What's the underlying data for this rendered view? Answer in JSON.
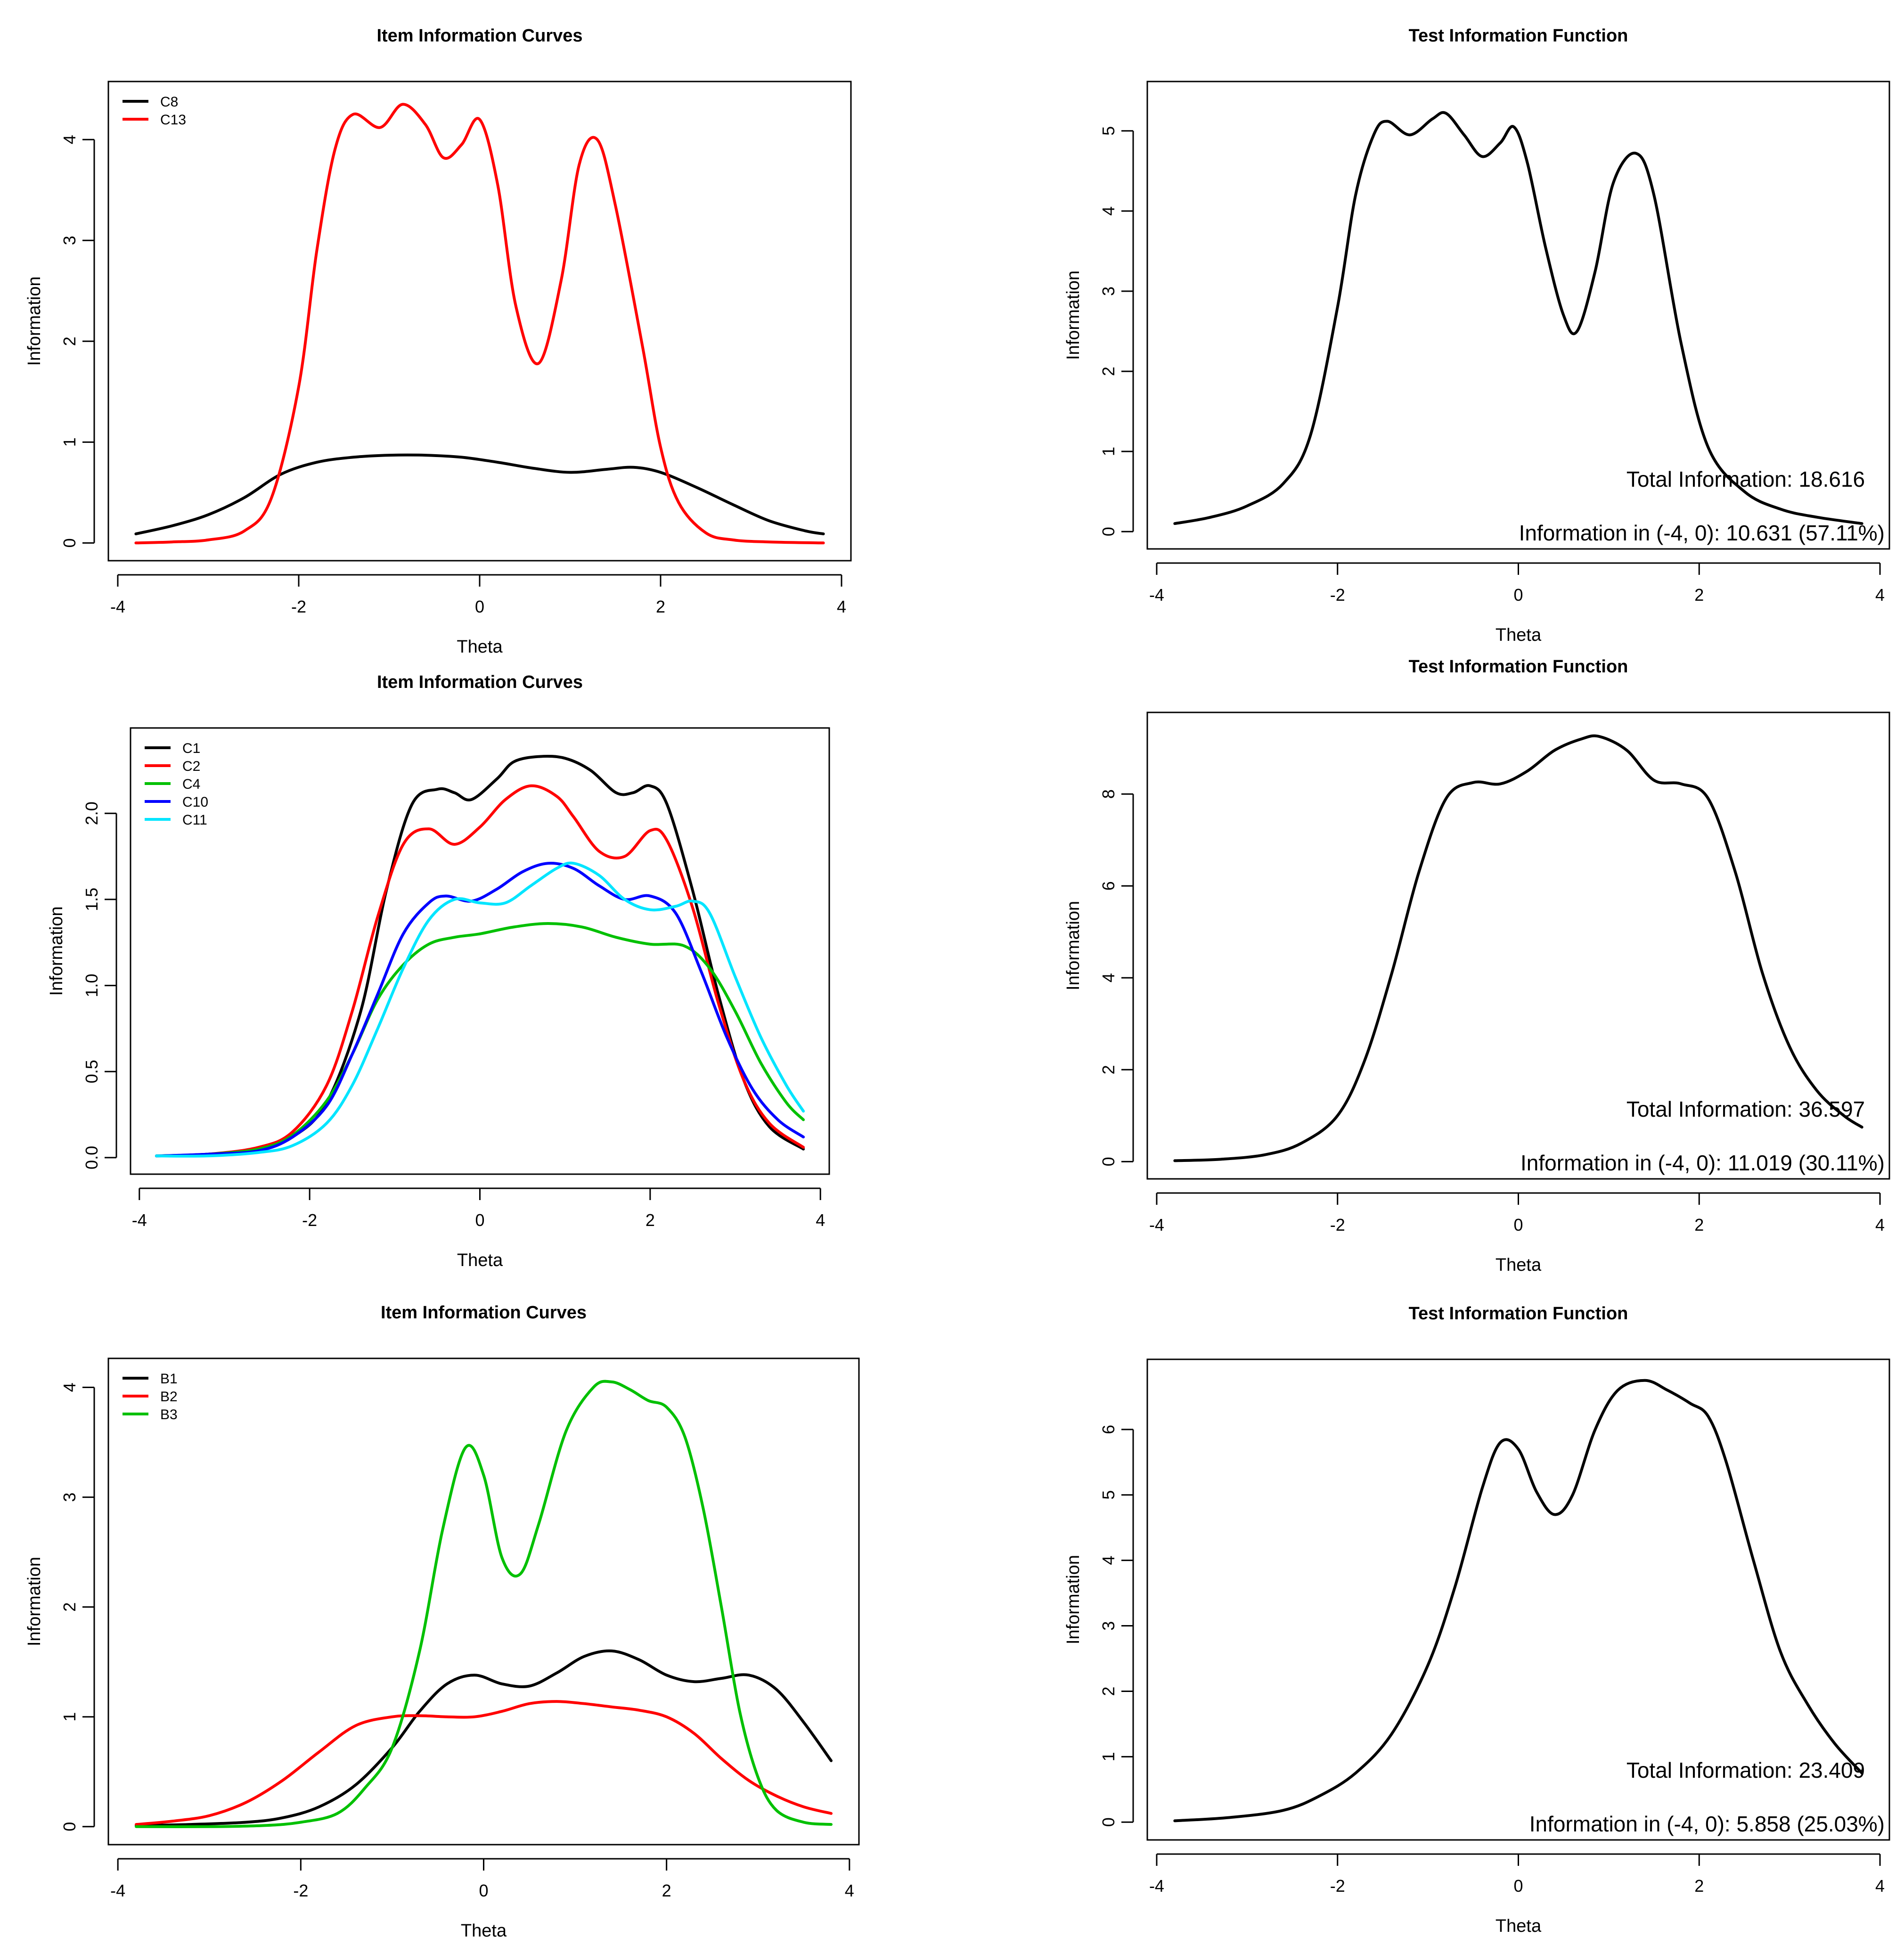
{
  "chart_data": [
    {
      "type": "line",
      "title": "Item Information Curves",
      "xlabel": "Theta",
      "ylabel": "Information",
      "xlim": [
        -3.8,
        3.8
      ],
      "ylim": [
        0,
        4.4
      ],
      "xticks": [
        -4,
        -2,
        0,
        2,
        4
      ],
      "yticks": [
        0,
        1,
        2,
        3,
        4
      ],
      "legend_position": "top-left",
      "series": [
        {
          "name": "C8",
          "color": "#000000",
          "x": [
            -3.8,
            -3.4,
            -3.0,
            -2.6,
            -2.2,
            -1.8,
            -1.4,
            -1.0,
            -0.6,
            -0.2,
            0.2,
            0.6,
            1.0,
            1.4,
            1.7,
            2.0,
            2.4,
            2.8,
            3.2,
            3.6,
            3.8
          ],
          "y": [
            0.09,
            0.17,
            0.28,
            0.45,
            0.68,
            0.8,
            0.85,
            0.87,
            0.87,
            0.85,
            0.8,
            0.74,
            0.7,
            0.73,
            0.75,
            0.7,
            0.55,
            0.38,
            0.22,
            0.12,
            0.09
          ]
        },
        {
          "name": "C13",
          "color": "#ff0000",
          "x": [
            -3.8,
            -3.4,
            -3.0,
            -2.6,
            -2.3,
            -2.0,
            -1.8,
            -1.6,
            -1.4,
            -1.1,
            -0.85,
            -0.6,
            -0.4,
            -0.2,
            0.0,
            0.2,
            0.4,
            0.65,
            0.9,
            1.1,
            1.3,
            1.5,
            1.8,
            2.0,
            2.2,
            2.5,
            2.8,
            3.2,
            3.8
          ],
          "y": [
            0.0,
            0.01,
            0.03,
            0.12,
            0.45,
            1.55,
            2.9,
            3.9,
            4.25,
            4.12,
            4.35,
            4.15,
            3.82,
            3.95,
            4.2,
            3.55,
            2.35,
            1.78,
            2.6,
            3.75,
            4.0,
            3.35,
            1.95,
            0.95,
            0.4,
            0.1,
            0.03,
            0.01,
            0.0
          ]
        }
      ]
    },
    {
      "type": "line",
      "title": "Test Information Function",
      "xlabel": "Theta",
      "ylabel": "Information",
      "xlim": [
        -3.8,
        3.8
      ],
      "ylim": [
        0,
        5.4
      ],
      "xticks": [
        -4,
        -2,
        0,
        2,
        4
      ],
      "yticks": [
        0,
        1,
        2,
        3,
        4,
        5
      ],
      "annotations": [
        "Total Information: 18.616",
        "Information in (-4, 0): 10.631 (57.11%)"
      ],
      "series": [
        {
          "name": "Test",
          "color": "#000000",
          "x": [
            -3.8,
            -3.4,
            -3.0,
            -2.6,
            -2.3,
            -2.0,
            -1.8,
            -1.6,
            -1.45,
            -1.2,
            -0.95,
            -0.8,
            -0.6,
            -0.4,
            -0.2,
            -0.05,
            0.1,
            0.3,
            0.5,
            0.65,
            0.85,
            1.05,
            1.3,
            1.5,
            1.8,
            2.1,
            2.5,
            2.9,
            3.3,
            3.8
          ],
          "y": [
            0.1,
            0.18,
            0.32,
            0.6,
            1.2,
            2.8,
            4.2,
            4.95,
            5.12,
            4.95,
            5.15,
            5.22,
            4.95,
            4.68,
            4.85,
            5.05,
            4.6,
            3.55,
            2.7,
            2.5,
            3.25,
            4.35,
            4.72,
            4.2,
            2.35,
            1.05,
            0.5,
            0.28,
            0.18,
            0.1
          ]
        }
      ]
    },
    {
      "type": "line",
      "title": "Item Information Curves",
      "xlabel": "Theta",
      "ylabel": "Information",
      "xlim": [
        -3.8,
        3.8
      ],
      "ylim": [
        0,
        2.4
      ],
      "xticks": [
        -4,
        -2,
        0,
        2,
        4
      ],
      "yticks": [
        0.0,
        0.5,
        1.0,
        1.5,
        2.0
      ],
      "legend_position": "top-left",
      "series": [
        {
          "name": "C1",
          "color": "#000000",
          "x": [
            -3.8,
            -3.2,
            -2.6,
            -2.2,
            -1.8,
            -1.4,
            -1.1,
            -0.8,
            -0.5,
            -0.3,
            -0.1,
            0.2,
            0.4,
            0.7,
            1.0,
            1.3,
            1.6,
            1.8,
            2.0,
            2.2,
            2.5,
            2.8,
            3.1,
            3.4,
            3.8
          ],
          "y": [
            0.01,
            0.02,
            0.05,
            0.12,
            0.32,
            0.85,
            1.55,
            2.05,
            2.14,
            2.12,
            2.08,
            2.2,
            2.3,
            2.33,
            2.32,
            2.25,
            2.12,
            2.12,
            2.16,
            2.05,
            1.55,
            0.95,
            0.45,
            0.18,
            0.05
          ]
        },
        {
          "name": "C2",
          "color": "#ff0000",
          "x": [
            -3.8,
            -3.2,
            -2.6,
            -2.2,
            -1.8,
            -1.5,
            -1.2,
            -0.9,
            -0.6,
            -0.3,
            0.0,
            0.3,
            0.6,
            0.9,
            1.1,
            1.4,
            1.7,
            2.0,
            2.2,
            2.5,
            2.8,
            3.1,
            3.4,
            3.8
          ],
          "y": [
            0.01,
            0.02,
            0.06,
            0.15,
            0.42,
            0.85,
            1.4,
            1.82,
            1.91,
            1.82,
            1.92,
            2.08,
            2.16,
            2.1,
            1.98,
            1.78,
            1.75,
            1.9,
            1.84,
            1.45,
            0.9,
            0.45,
            0.2,
            0.06
          ]
        },
        {
          "name": "C4",
          "color": "#00c000",
          "x": [
            -3.8,
            -3.2,
            -2.6,
            -2.2,
            -1.8,
            -1.5,
            -1.2,
            -0.9,
            -0.6,
            -0.3,
            0.0,
            0.4,
            0.8,
            1.2,
            1.6,
            2.0,
            2.4,
            2.7,
            3.0,
            3.3,
            3.6,
            3.8
          ],
          "y": [
            0.01,
            0.02,
            0.05,
            0.13,
            0.33,
            0.6,
            0.92,
            1.12,
            1.24,
            1.28,
            1.3,
            1.34,
            1.36,
            1.34,
            1.28,
            1.24,
            1.23,
            1.1,
            0.85,
            0.55,
            0.32,
            0.22
          ]
        },
        {
          "name": "C10",
          "color": "#0000ff",
          "x": [
            -3.8,
            -3.2,
            -2.6,
            -2.2,
            -1.8,
            -1.5,
            -1.2,
            -0.9,
            -0.6,
            -0.4,
            -0.1,
            0.2,
            0.5,
            0.8,
            1.1,
            1.4,
            1.7,
            2.0,
            2.3,
            2.6,
            2.9,
            3.2,
            3.5,
            3.8
          ],
          "y": [
            0.01,
            0.02,
            0.04,
            0.12,
            0.3,
            0.6,
            0.95,
            1.3,
            1.48,
            1.52,
            1.49,
            1.56,
            1.66,
            1.71,
            1.68,
            1.58,
            1.5,
            1.52,
            1.42,
            1.08,
            0.7,
            0.4,
            0.22,
            0.12
          ]
        },
        {
          "name": "C11",
          "color": "#00e5ff",
          "x": [
            -3.8,
            -3.2,
            -2.6,
            -2.2,
            -1.8,
            -1.5,
            -1.2,
            -0.9,
            -0.6,
            -0.3,
            0.0,
            0.3,
            0.6,
            0.9,
            1.1,
            1.4,
            1.7,
            2.0,
            2.3,
            2.5,
            2.7,
            3.0,
            3.3,
            3.6,
            3.8
          ],
          "y": [
            0.01,
            0.01,
            0.03,
            0.07,
            0.2,
            0.42,
            0.75,
            1.1,
            1.38,
            1.5,
            1.48,
            1.48,
            1.58,
            1.68,
            1.71,
            1.64,
            1.5,
            1.44,
            1.46,
            1.49,
            1.42,
            1.05,
            0.7,
            0.42,
            0.27
          ]
        }
      ]
    },
    {
      "type": "line",
      "title": "Test Information Function",
      "xlabel": "Theta",
      "ylabel": "Information",
      "xlim": [
        -3.8,
        3.8
      ],
      "ylim": [
        0,
        9.4
      ],
      "xticks": [
        -4,
        -2,
        0,
        2,
        4
      ],
      "yticks": [
        0,
        2,
        4,
        6,
        8
      ],
      "annotations": [
        "Total Information: 36.597",
        "Information in (-4, 0): 11.019 (30.11%)"
      ],
      "series": [
        {
          "name": "Test",
          "color": "#000000",
          "x": [
            -3.8,
            -3.3,
            -2.8,
            -2.4,
            -2.0,
            -1.7,
            -1.4,
            -1.1,
            -0.8,
            -0.5,
            -0.2,
            0.1,
            0.4,
            0.7,
            0.9,
            1.2,
            1.5,
            1.8,
            2.1,
            2.4,
            2.7,
            3.0,
            3.3,
            3.6,
            3.8
          ],
          "y": [
            0.02,
            0.05,
            0.15,
            0.4,
            1.0,
            2.2,
            4.1,
            6.3,
            7.9,
            8.25,
            8.22,
            8.5,
            8.95,
            9.2,
            9.25,
            8.95,
            8.3,
            8.22,
            7.9,
            6.3,
            4.1,
            2.5,
            1.55,
            1.0,
            0.75
          ]
        }
      ]
    },
    {
      "type": "line",
      "title": "Item Information Curves",
      "xlabel": "Theta",
      "ylabel": "Information",
      "xlim": [
        -3.8,
        3.8
      ],
      "ylim": [
        0,
        4.1
      ],
      "xticks": [
        -4,
        -2,
        0,
        2,
        4
      ],
      "yticks": [
        0,
        1,
        2,
        3,
        4
      ],
      "legend_position": "top-left",
      "series": [
        {
          "name": "B1",
          "color": "#000000",
          "x": [
            -3.8,
            -3.2,
            -2.6,
            -2.2,
            -1.8,
            -1.4,
            -1.0,
            -0.7,
            -0.4,
            -0.1,
            0.2,
            0.5,
            0.8,
            1.1,
            1.4,
            1.7,
            2.0,
            2.3,
            2.6,
            2.9,
            3.2,
            3.5,
            3.8
          ],
          "y": [
            0.01,
            0.02,
            0.04,
            0.08,
            0.18,
            0.38,
            0.72,
            1.05,
            1.3,
            1.38,
            1.3,
            1.28,
            1.4,
            1.55,
            1.6,
            1.52,
            1.38,
            1.32,
            1.35,
            1.38,
            1.25,
            0.95,
            0.6
          ]
        },
        {
          "name": "B2",
          "color": "#ff0000",
          "x": [
            -3.8,
            -3.4,
            -3.0,
            -2.6,
            -2.2,
            -1.8,
            -1.4,
            -1.0,
            -0.7,
            -0.4,
            -0.1,
            0.2,
            0.5,
            0.8,
            1.1,
            1.4,
            1.7,
            2.0,
            2.3,
            2.6,
            2.9,
            3.2,
            3.5,
            3.8
          ],
          "y": [
            0.02,
            0.05,
            0.1,
            0.22,
            0.42,
            0.68,
            0.92,
            1.0,
            1.01,
            1.0,
            1.0,
            1.05,
            1.12,
            1.14,
            1.12,
            1.09,
            1.06,
            1.0,
            0.85,
            0.62,
            0.42,
            0.28,
            0.18,
            0.12
          ]
        },
        {
          "name": "B3",
          "color": "#00c000",
          "x": [
            -3.8,
            -3.0,
            -2.4,
            -2.0,
            -1.6,
            -1.3,
            -1.0,
            -0.7,
            -0.45,
            -0.2,
            0.0,
            0.2,
            0.4,
            0.6,
            0.9,
            1.2,
            1.4,
            1.6,
            1.8,
            2.0,
            2.2,
            2.4,
            2.6,
            2.8,
            3.0,
            3.2,
            3.5,
            3.8
          ],
          "y": [
            0.0,
            0.0,
            0.01,
            0.04,
            0.12,
            0.35,
            0.72,
            1.6,
            2.7,
            3.45,
            3.2,
            2.45,
            2.3,
            2.75,
            3.6,
            4.0,
            4.05,
            3.98,
            3.88,
            3.82,
            3.55,
            2.9,
            2.0,
            1.05,
            0.45,
            0.15,
            0.04,
            0.02
          ]
        }
      ]
    },
    {
      "type": "line",
      "title": "Test Information Function",
      "xlabel": "Theta",
      "ylabel": "Information",
      "xlim": [
        -3.8,
        3.8
      ],
      "ylim": [
        0,
        6.8
      ],
      "xticks": [
        -4,
        -2,
        0,
        2,
        4
      ],
      "yticks": [
        0,
        1,
        2,
        3,
        4,
        5,
        6
      ],
      "annotations": [
        "Total Information: 23.409",
        "Information in (-4, 0): 5.858 (25.03%)"
      ],
      "series": [
        {
          "name": "Test",
          "color": "#000000",
          "x": [
            -3.8,
            -3.2,
            -2.6,
            -2.2,
            -1.8,
            -1.4,
            -1.0,
            -0.7,
            -0.4,
            -0.2,
            0.0,
            0.2,
            0.4,
            0.6,
            0.85,
            1.1,
            1.4,
            1.65,
            1.9,
            2.1,
            2.3,
            2.6,
            2.9,
            3.2,
            3.5,
            3.8
          ],
          "y": [
            0.02,
            0.07,
            0.18,
            0.4,
            0.75,
            1.35,
            2.4,
            3.6,
            5.1,
            5.8,
            5.7,
            5.05,
            4.7,
            5.0,
            6.0,
            6.6,
            6.75,
            6.6,
            6.4,
            6.2,
            5.5,
            4.0,
            2.6,
            1.8,
            1.2,
            0.75
          ]
        }
      ]
    }
  ]
}
